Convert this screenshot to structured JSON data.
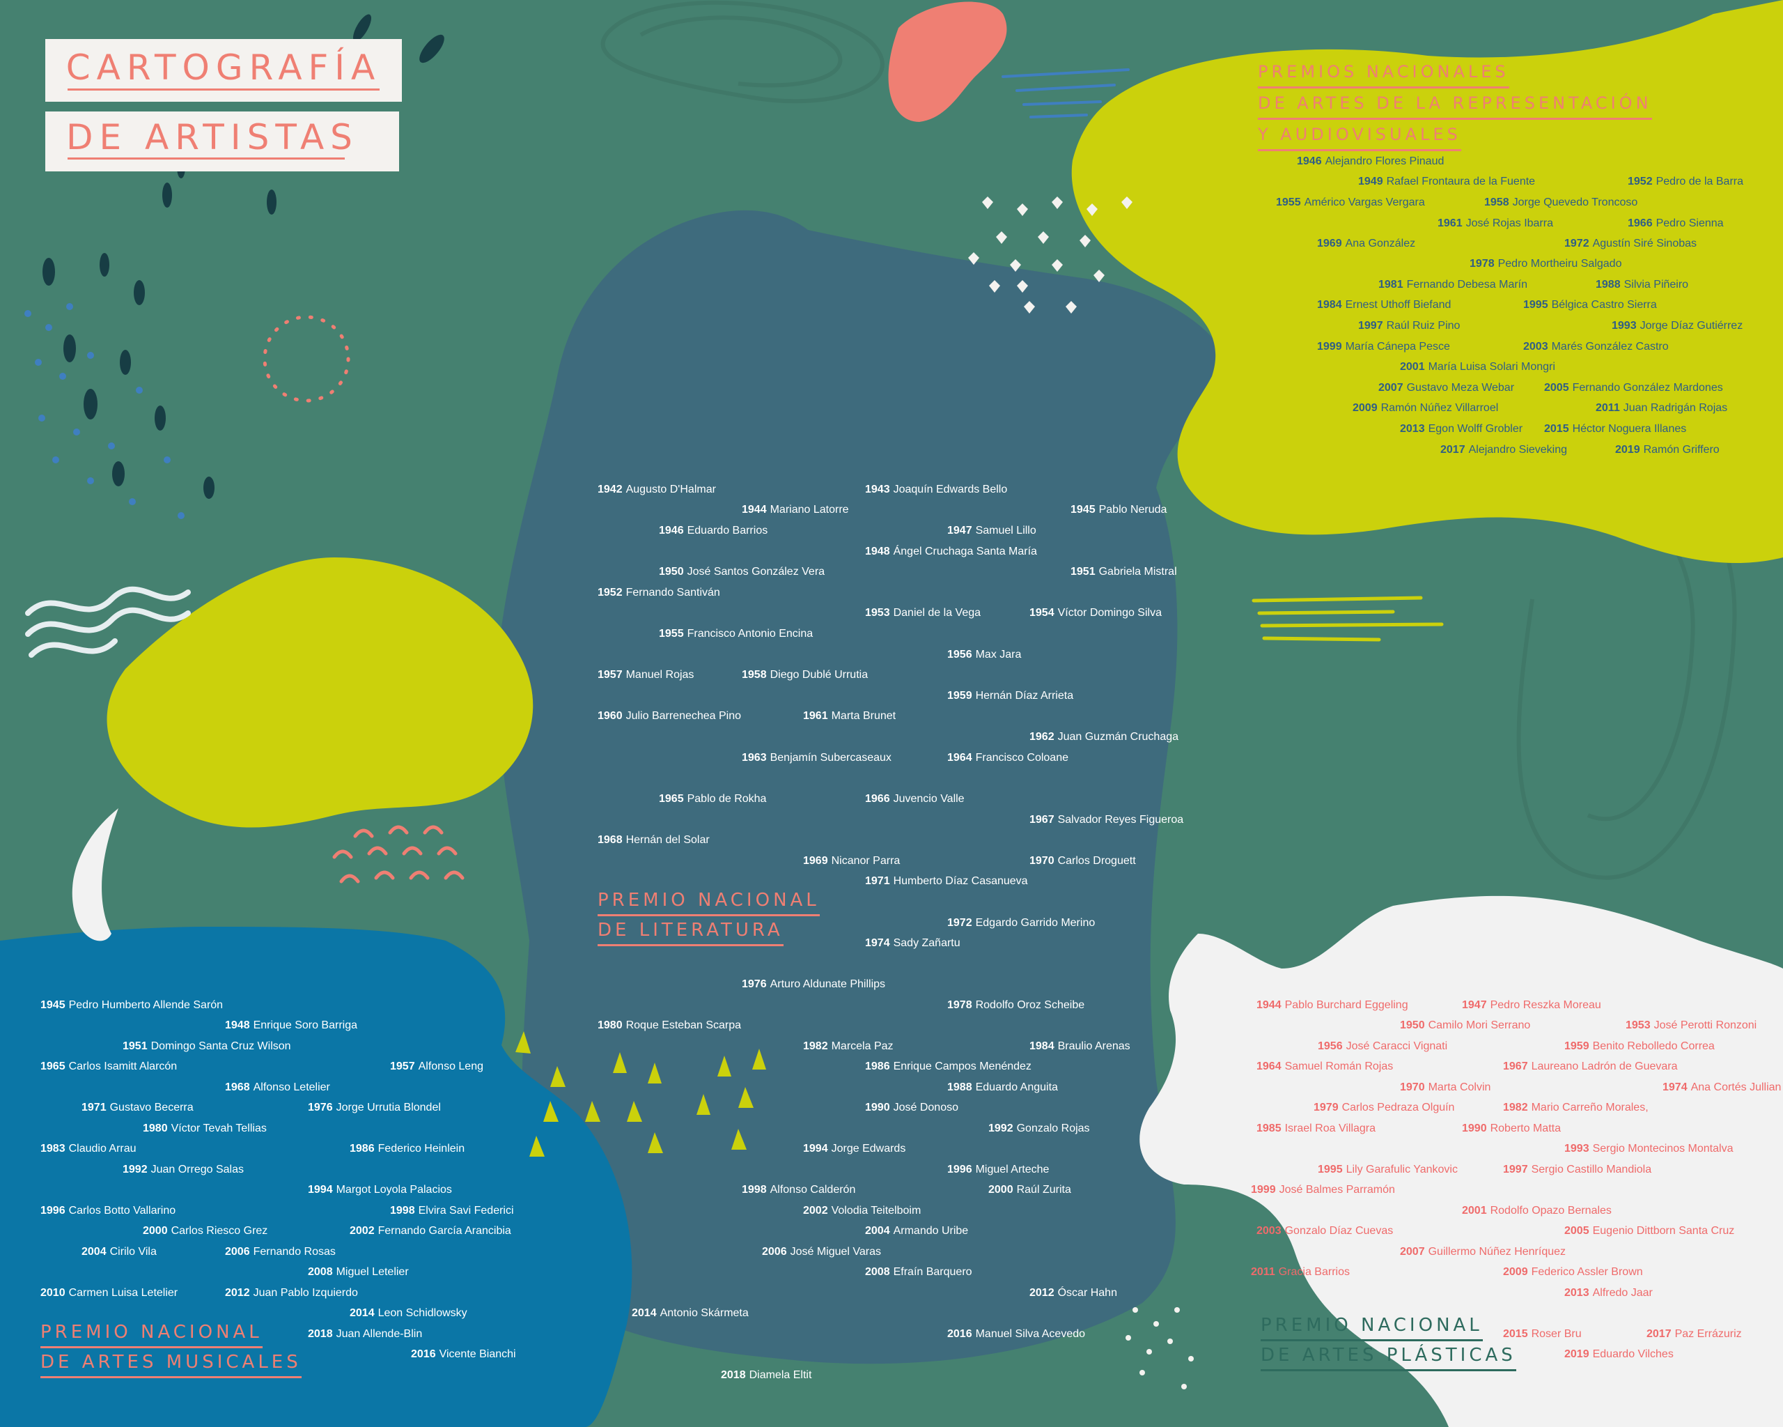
{
  "title": {
    "line1": "CARTOGRAFÍA",
    "line2": "DE ARTISTAS"
  },
  "colors": {
    "background": "#458170",
    "lime": "#cbd10c",
    "slate": "#3d6b7d",
    "blue": "#0b76a6",
    "white": "#f2f2f2",
    "coral": "#ef7f73"
  },
  "sections": {
    "literatura": {
      "heading": [
        "PREMIO NACIONAL",
        "DE LITERATURA"
      ],
      "entries": [
        {
          "year": "1942",
          "name": "Augusto D'Halmar"
        },
        {
          "year": "1943",
          "name": "Joaquín Edwards Bello"
        },
        {
          "year": "1944",
          "name": "Mariano Latorre"
        },
        {
          "year": "1945",
          "name": "Pablo Neruda"
        },
        {
          "year": "1946",
          "name": "Eduardo Barrios"
        },
        {
          "year": "1947",
          "name": "Samuel Lillo"
        },
        {
          "year": "1948",
          "name": "Ángel Cruchaga Santa María"
        },
        {
          "year": "1950",
          "name": "José Santos González Vera"
        },
        {
          "year": "1951",
          "name": "Gabriela Mistral"
        },
        {
          "year": "1952",
          "name": "Fernando Santiván"
        },
        {
          "year": "1953",
          "name": "Daniel de la Vega"
        },
        {
          "year": "1954",
          "name": "Víctor Domingo Silva"
        },
        {
          "year": "1955",
          "name": "Francisco Antonio Encina"
        },
        {
          "year": "1956",
          "name": "Max Jara"
        },
        {
          "year": "1957",
          "name": "Manuel Rojas"
        },
        {
          "year": "1958",
          "name": "Diego Dublé Urrutia"
        },
        {
          "year": "1959",
          "name": "Hernán Díaz Arrieta"
        },
        {
          "year": "1960",
          "name": "Julio Barrenechea Pino"
        },
        {
          "year": "1961",
          "name": "Marta Brunet"
        },
        {
          "year": "1962",
          "name": "Juan Guzmán Cruchaga"
        },
        {
          "year": "1963",
          "name": "Benjamín Subercaseaux"
        },
        {
          "year": "1964",
          "name": "Francisco Coloane"
        },
        {
          "year": "1965",
          "name": "Pablo de Rokha"
        },
        {
          "year": "1966",
          "name": "Juvencio Valle"
        },
        {
          "year": "1967",
          "name": "Salvador Reyes Figueroa"
        },
        {
          "year": "1968",
          "name": "Hernán del Solar"
        },
        {
          "year": "1969",
          "name": "Nicanor Parra"
        },
        {
          "year": "1970",
          "name": "Carlos Droguett"
        },
        {
          "year": "1971",
          "name": "Humberto Díaz Casanueva"
        },
        {
          "year": "1972",
          "name": "Edgardo Garrido Merino"
        },
        {
          "year": "1974",
          "name": "Sady Zañartu"
        },
        {
          "year": "1976",
          "name": "Arturo Aldunate Phillips"
        },
        {
          "year": "1978",
          "name": "Rodolfo Oroz Scheibe"
        },
        {
          "year": "1980",
          "name": "Roque Esteban Scarpa"
        },
        {
          "year": "1982",
          "name": "Marcela Paz"
        },
        {
          "year": "1984",
          "name": "Braulio Arenas"
        },
        {
          "year": "1986",
          "name": "Enrique Campos Menéndez"
        },
        {
          "year": "1988",
          "name": "Eduardo Anguita"
        },
        {
          "year": "1990",
          "name": "José Donoso"
        },
        {
          "year": "1992",
          "name": "Gonzalo Rojas"
        },
        {
          "year": "1994",
          "name": "Jorge Edwards"
        },
        {
          "year": "1996",
          "name": "Miguel Arteche"
        },
        {
          "year": "1998",
          "name": "Alfonso Calderón"
        },
        {
          "year": "2000",
          "name": "Raúl Zurita"
        },
        {
          "year": "2002",
          "name": "Volodia Teitelboim"
        },
        {
          "year": "2004",
          "name": "Armando Uribe"
        },
        {
          "year": "2006",
          "name": "José Miguel Varas"
        },
        {
          "year": "2008",
          "name": "Efraín Barquero"
        },
        {
          "year": "2012",
          "name": "Óscar Hahn"
        },
        {
          "year": "2014",
          "name": "Antonio Skármeta"
        },
        {
          "year": "2016",
          "name": "Manuel Silva Acevedo"
        },
        {
          "year": "2018",
          "name": "Diamela Eltit"
        }
      ]
    },
    "representacion": {
      "heading": [
        "PREMIOS NACIONALES",
        "DE ARTES DE LA REPRESENTACIÓN",
        "Y AUDIOVISUALES"
      ],
      "entries": [
        {
          "year": "1946",
          "name": "Alejandro Flores Pinaud"
        },
        {
          "year": "1949",
          "name": "Rafael Frontaura de la Fuente"
        },
        {
          "year": "1952",
          "name": "Pedro de la Barra"
        },
        {
          "year": "1955",
          "name": "Américo Vargas Vergara"
        },
        {
          "year": "1958",
          "name": "Jorge Quevedo Troncoso"
        },
        {
          "year": "1961",
          "name": "José Rojas Ibarra"
        },
        {
          "year": "1966",
          "name": "Pedro Sienna"
        },
        {
          "year": "1969",
          "name": "Ana González"
        },
        {
          "year": "1972",
          "name": "Agustín Siré Sinobas"
        },
        {
          "year": "1978",
          "name": "Pedro Mortheiru Salgado"
        },
        {
          "year": "1981",
          "name": "Fernando Debesa Marín"
        },
        {
          "year": "1988",
          "name": "Silvia Piñeiro"
        },
        {
          "year": "1984",
          "name": "Ernest Uthoff Biefand"
        },
        {
          "year": "1995",
          "name": "Bélgica Castro Sierra"
        },
        {
          "year": "1997",
          "name": "Raúl Ruiz Pino"
        },
        {
          "year": "1993",
          "name": "Jorge Díaz Gutiérrez"
        },
        {
          "year": "1999",
          "name": "María Cánepa Pesce"
        },
        {
          "year": "2003",
          "name": "Marés González Castro"
        },
        {
          "year": "2001",
          "name": "María Luisa Solari Mongri"
        },
        {
          "year": "2007",
          "name": "Gustavo Meza Webar"
        },
        {
          "year": "2005",
          "name": "Fernando González Mardones"
        },
        {
          "year": "2009",
          "name": "Ramón Núñez Villarroel"
        },
        {
          "year": "2011",
          "name": "Juan Radrigán Rojas"
        },
        {
          "year": "2013",
          "name": "Egon Wolff Grobler"
        },
        {
          "year": "2015",
          "name": "Héctor Noguera Illanes"
        },
        {
          "year": "2017",
          "name": "Alejandro Sieveking"
        },
        {
          "year": "2019",
          "name": "Ramón Griffero"
        }
      ]
    },
    "musicales": {
      "heading": [
        "PREMIO NACIONAL",
        "DE ARTES MUSICALES"
      ],
      "entries": [
        {
          "year": "1945",
          "name": "Pedro Humberto Allende Sarón"
        },
        {
          "year": "1948",
          "name": "Enrique Soro Barriga"
        },
        {
          "year": "1951",
          "name": "Domingo Santa Cruz Wilson"
        },
        {
          "year": "1965",
          "name": "Carlos Isamitt Alarcón"
        },
        {
          "year": "1957",
          "name": "Alfonso Leng"
        },
        {
          "year": "1968",
          "name": "Alfonso Letelier"
        },
        {
          "year": "1971",
          "name": "Gustavo Becerra"
        },
        {
          "year": "1976",
          "name": "Jorge Urrutia Blondel"
        },
        {
          "year": "1980",
          "name": "Víctor Tevah Tellias"
        },
        {
          "year": "1983",
          "name": "Claudio Arrau"
        },
        {
          "year": "1986",
          "name": "Federico Heinlein"
        },
        {
          "year": "1992",
          "name": "Juan Orrego Salas"
        },
        {
          "year": "1994",
          "name": "Margot Loyola Palacios"
        },
        {
          "year": "1996",
          "name": "Carlos Botto Vallarino"
        },
        {
          "year": "1998",
          "name": "Elvira Savi Federici"
        },
        {
          "year": "2000",
          "name": "Carlos Riesco Grez"
        },
        {
          "year": "2002",
          "name": "Fernando García Arancibia"
        },
        {
          "year": "2004",
          "name": "Cirilo Vila"
        },
        {
          "year": "2006",
          "name": "Fernando Rosas"
        },
        {
          "year": "2008",
          "name": "Miguel Letelier"
        },
        {
          "year": "2010",
          "name": "Carmen Luisa Letelier"
        },
        {
          "year": "2012",
          "name": "Juan Pablo Izquierdo"
        },
        {
          "year": "2014",
          "name": "Leon Schidlowsky"
        },
        {
          "year": "2018",
          "name": "Juan Allende-Blin"
        },
        {
          "year": "2016",
          "name": "Vicente Bianchi"
        }
      ]
    },
    "plasticas": {
      "heading": [
        "PREMIO NACIONAL",
        "DE ARTES PLÁSTICAS"
      ],
      "entries": [
        {
          "year": "1944",
          "name": "Pablo Burchard Eggeling"
        },
        {
          "year": "1947",
          "name": "Pedro Reszka Moreau"
        },
        {
          "year": "1950",
          "name": "Camilo Mori Serrano"
        },
        {
          "year": "1953",
          "name": "José Perotti Ronzoni"
        },
        {
          "year": "1956",
          "name": "José Caracci Vignati"
        },
        {
          "year": "1959",
          "name": "Benito Rebolledo Correa"
        },
        {
          "year": "1964",
          "name": "Samuel Román Rojas"
        },
        {
          "year": "1967",
          "name": "Laureano Ladrón de Guevara"
        },
        {
          "year": "1970",
          "name": "Marta Colvin"
        },
        {
          "year": "1974",
          "name": "Ana Cortés Jullian"
        },
        {
          "year": "1979",
          "name": "Carlos Pedraza Olguín"
        },
        {
          "year": "1982",
          "name": "Mario Carreño Morales,"
        },
        {
          "year": "1985",
          "name": "Israel Roa Villagra"
        },
        {
          "year": "1990",
          "name": "Roberto Matta"
        },
        {
          "year": "1993",
          "name": "Sergio Montecinos Montalva"
        },
        {
          "year": "1995",
          "name": "Lily Garafulic Yankovic"
        },
        {
          "year": "1997",
          "name": "Sergio Castillo Mandiola"
        },
        {
          "year": "1999",
          "name": "José Balmes Parramón"
        },
        {
          "year": "2001",
          "name": "Rodolfo Opazo Bernales"
        },
        {
          "year": "2003",
          "name": "Gonzalo Díaz Cuevas"
        },
        {
          "year": "2005",
          "name": "Eugenio Dittborn Santa Cruz"
        },
        {
          "year": "2007",
          "name": "Guillermo Núñez Henríquez"
        },
        {
          "year": "2011",
          "name": "Gracia Barrios"
        },
        {
          "year": "2009",
          "name": "Federico Assler Brown"
        },
        {
          "year": "2013",
          "name": "Alfredo Jaar"
        },
        {
          "year": "2015",
          "name": "Roser Bru"
        },
        {
          "year": "2017",
          "name": "Paz Errázuriz"
        },
        {
          "year": "2019",
          "name": "Eduardo Vilches"
        }
      ]
    }
  }
}
